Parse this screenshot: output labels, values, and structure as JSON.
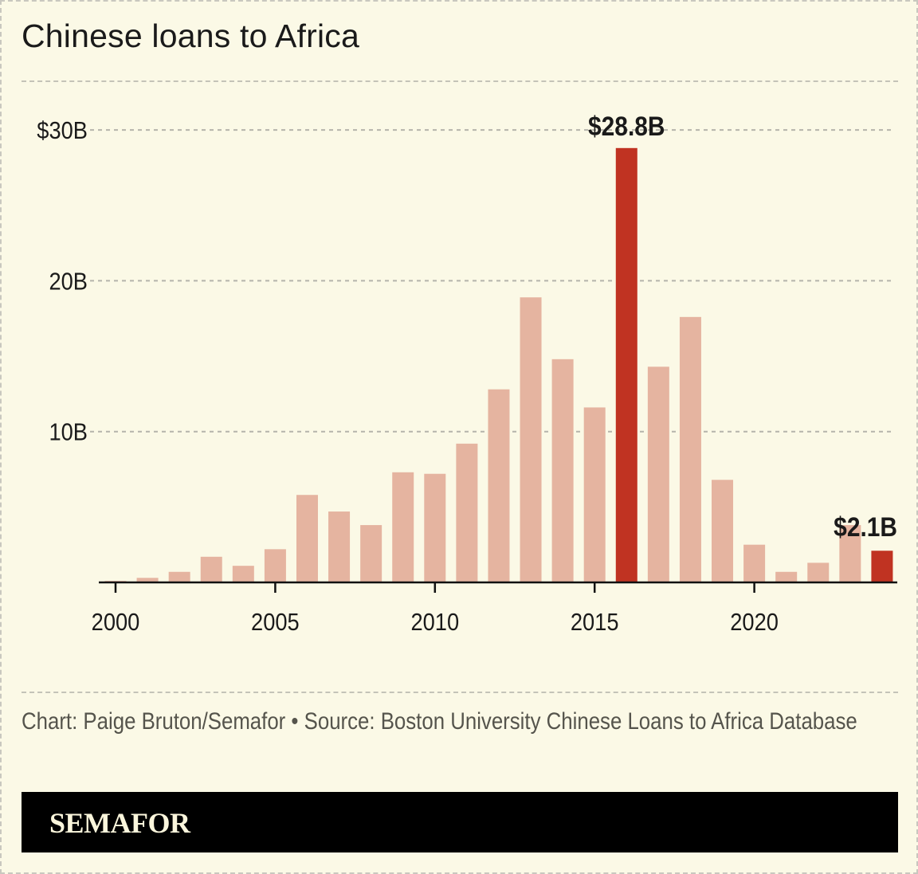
{
  "header": {
    "title": "Chinese loans to Africa"
  },
  "footer": {
    "credit": "Chart: Paige Bruton/Semafor • Source: Boston University Chinese Loans to Africa Database",
    "brand": "SEMAFOR"
  },
  "colors": {
    "background": "#fbf9e6",
    "bar": "#e5b4a0",
    "highlight": "#c03322",
    "gridline": "#b5b4ab",
    "text": "#1a1a1a",
    "brand_bar": "#000000"
  },
  "chart_data": {
    "type": "bar",
    "title": "Chinese loans to Africa",
    "xlabel": "",
    "ylabel": "",
    "ylim": [
      0,
      30
    ],
    "y_ticks": [
      {
        "value": 10,
        "label": "10B"
      },
      {
        "value": 20,
        "label": "20B"
      },
      {
        "value": 30,
        "label": "$30B"
      }
    ],
    "x_ticks": [
      {
        "value": 2000,
        "label": "2000"
      },
      {
        "value": 2005,
        "label": "2005"
      },
      {
        "value": 2010,
        "label": "2010"
      },
      {
        "value": 2015,
        "label": "2015"
      },
      {
        "value": 2020,
        "label": "2020"
      }
    ],
    "grid": true,
    "categories": [
      2000,
      2001,
      2002,
      2003,
      2004,
      2005,
      2006,
      2007,
      2008,
      2009,
      2010,
      2011,
      2012,
      2013,
      2014,
      2015,
      2016,
      2017,
      2018,
      2019,
      2020,
      2021,
      2022,
      2023,
      2024
    ],
    "values": [
      0.1,
      0.3,
      0.7,
      1.7,
      1.1,
      2.2,
      5.8,
      4.7,
      3.8,
      7.3,
      7.2,
      9.2,
      12.8,
      18.9,
      14.8,
      11.6,
      28.8,
      14.3,
      17.6,
      6.8,
      2.5,
      0.7,
      1.3,
      3.8,
      2.1
    ],
    "highlighted": [
      2016,
      2024
    ],
    "annotations": [
      {
        "year": 2016,
        "label": "$28.8B"
      },
      {
        "year": 2024,
        "label": "$2.1B"
      }
    ],
    "units": "USD billions"
  }
}
